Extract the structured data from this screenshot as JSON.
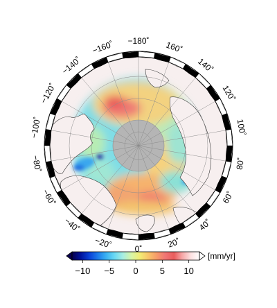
{
  "map": {
    "projection": "north-polar-stereographic",
    "center_lat": 90,
    "pole_hole_color": "#b5b5b5",
    "land_color": "#f7efef",
    "frame_colors": [
      "#000000",
      "#ffffff"
    ],
    "longitude_labels": [
      {
        "text": "−160˚",
        "lon": -160
      },
      {
        "text": "−180˚",
        "lon": 180
      },
      {
        "text": "160˚",
        "lon": 160
      },
      {
        "text": "140˚",
        "lon": 140
      },
      {
        "text": "120˚",
        "lon": 120
      },
      {
        "text": "100˚",
        "lon": 100
      },
      {
        "text": "80˚",
        "lon": 80
      },
      {
        "text": "60˚",
        "lon": 60
      },
      {
        "text": "40˚",
        "lon": 40
      },
      {
        "text": "20˚",
        "lon": 20
      },
      {
        "text": "0˚",
        "lon": 0
      },
      {
        "text": "−20˚",
        "lon": -20
      },
      {
        "text": "−40˚",
        "lon": -40
      },
      {
        "text": "−60˚",
        "lon": -60
      },
      {
        "text": "−80˚",
        "lon": -80
      },
      {
        "text": "−100˚",
        "lon": -100
      },
      {
        "text": "−120˚",
        "lon": -120
      },
      {
        "text": "−140˚",
        "lon": -140
      }
    ]
  },
  "colorbar": {
    "unit_label": "[mm/yr]",
    "min": -12,
    "max": 12,
    "ticks": [
      {
        "label": "−10",
        "value": -10
      },
      {
        "label": "−5",
        "value": -5
      },
      {
        "label": "0",
        "value": 0
      },
      {
        "label": "5",
        "value": 5
      },
      {
        "label": "10",
        "value": 10
      }
    ],
    "colors": [
      "#08004f",
      "#00129a",
      "#0a3fd6",
      "#1c79ea",
      "#39b1f2",
      "#6ad9f3",
      "#a8eee2",
      "#d8f5a6",
      "#f3ec74",
      "#f8c46a",
      "#f69a6a",
      "#f07575",
      "#ea5c5c",
      "#f7a9a9",
      "#fde2e2",
      "#ffffff"
    ]
  }
}
